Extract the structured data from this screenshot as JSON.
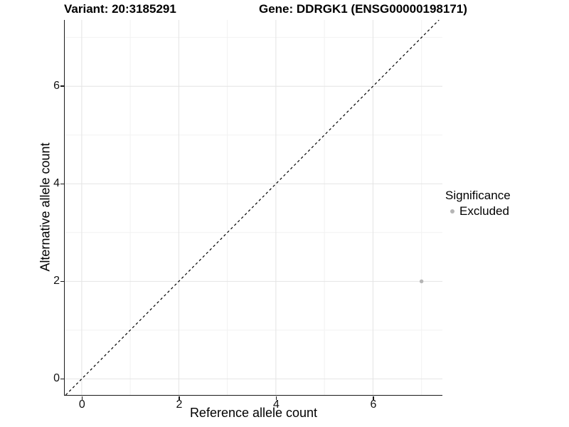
{
  "titles": {
    "variant": "Variant: 20:3185291",
    "gene": "Gene: DDRGK1 (ENSG00000198171)"
  },
  "chart_data": {
    "type": "scatter",
    "title_left": "Variant: 20:3185291",
    "title_right": "Gene: DDRGK1 (ENSG00000198171)",
    "xlabel": "Reference allele count",
    "ylabel": "Alternative allele count",
    "xlim": [
      -0.35,
      7.43
    ],
    "ylim": [
      -0.33,
      7.36
    ],
    "xticks": [
      0,
      2,
      4,
      6
    ],
    "yticks": [
      0,
      2,
      4,
      6
    ],
    "minor_xticks": [
      1,
      3,
      5,
      7
    ],
    "minor_yticks": [
      1,
      3,
      5,
      7
    ],
    "grid": true,
    "points": [
      {
        "x": 7,
        "y": 2,
        "significance": "Excluded"
      }
    ],
    "identity_line": {
      "style": "dashed",
      "slope": 1,
      "intercept": 0
    },
    "legend": {
      "title": "Significance",
      "position": "right",
      "items": [
        {
          "label": "Excluded",
          "color": "#b5b5b5"
        }
      ]
    },
    "colors": {
      "point": "#b5b5b5",
      "axis_line": "#1a1a1a",
      "major_grid": "#e4e4e4",
      "minor_grid": "#f2f2f2",
      "diagonal": "#000000",
      "text": "#000000"
    }
  }
}
